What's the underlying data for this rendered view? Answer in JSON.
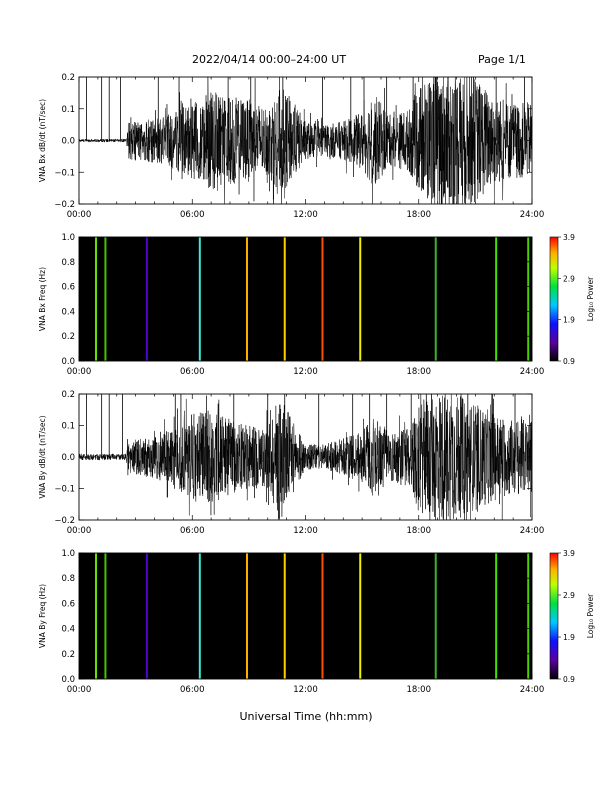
{
  "header": {
    "title": "2022/04/14  00:00–24:00 UT",
    "page": "Page 1/1"
  },
  "x_axis_title": "Universal Time (hh:mm)",
  "x_tick_labels": [
    "00:00",
    "06:00",
    "12:00",
    "18:00",
    "24:00"
  ],
  "chart_data": [
    {
      "type": "line",
      "ylabel": "VNA Bx dB/dt (nT/sec)",
      "xlim": [
        0,
        24
      ],
      "ylim": [
        -0.2,
        0.2
      ],
      "yticks": [
        "0.2",
        "0.1",
        "0.0",
        "−0.1",
        "−0.2"
      ],
      "xticks": [
        "00:00",
        "06:00",
        "12:00",
        "18:00",
        "24:00"
      ],
      "quiet_until_hour": 2.55,
      "spike_hours": [
        0.4,
        1.2,
        1.6,
        2.2,
        4.2,
        5.3,
        7.9,
        9.1,
        10.8,
        12.9,
        14.4,
        15.1,
        16.3,
        17.7,
        18.8,
        20.9,
        22.1,
        23.6
      ],
      "envelope_hours": [
        0,
        2.5,
        2.6,
        4,
        5,
        6,
        7,
        8,
        9,
        10,
        10.7,
        11.3,
        12,
        13,
        14,
        15,
        15.6,
        16.5,
        17.5,
        18.2,
        19,
        20,
        21,
        22,
        23,
        24
      ],
      "envelope_amp": [
        0.005,
        0.005,
        0.06,
        0.07,
        0.09,
        0.12,
        0.16,
        0.14,
        0.13,
        0.11,
        0.17,
        0.13,
        0.06,
        0.05,
        0.06,
        0.09,
        0.15,
        0.08,
        0.1,
        0.19,
        0.22,
        0.22,
        0.2,
        0.14,
        0.12,
        0.12
      ]
    },
    {
      "type": "heatmap",
      "ylabel": "VNA Bx Freq (Hz)",
      "xlim": [
        0,
        24
      ],
      "ylim": [
        0,
        1
      ],
      "yticks": [
        "1.0",
        "0.8",
        "0.6",
        "0.4",
        "0.2",
        "0.0"
      ],
      "xticks": [
        "00:00",
        "06:00",
        "12:00",
        "18:00",
        "24:00"
      ],
      "background": "#000000",
      "colorbar": {
        "label": "Log₁₀ Power",
        "ticks": [
          "3.9",
          "2.9",
          "1.9",
          "0.9"
        ],
        "range": [
          0.9,
          3.9
        ]
      },
      "lines": [
        {
          "hour": 0.9,
          "color": "#66e000"
        },
        {
          "hour": 1.4,
          "color": "#44c400"
        },
        {
          "hour": 3.6,
          "color": "#5000d0"
        },
        {
          "hour": 6.4,
          "color": "#40e8d8"
        },
        {
          "hour": 8.9,
          "color": "#ffb000"
        },
        {
          "hour": 10.9,
          "color": "#ffd000"
        },
        {
          "hour": 12.9,
          "color": "#ff5000"
        },
        {
          "hour": 14.9,
          "color": "#f0f000"
        },
        {
          "hour": 18.9,
          "color": "#40b030"
        },
        {
          "hour": 22.1,
          "color": "#40e000"
        },
        {
          "hour": 23.8,
          "color": "#48d000"
        }
      ]
    },
    {
      "type": "line",
      "ylabel": "VNA By dB/dt (nT/sec)",
      "xlim": [
        0,
        24
      ],
      "ylim": [
        -0.2,
        0.2
      ],
      "yticks": [
        "0.2",
        "0.1",
        "0.0",
        "−0.1",
        "−0.2"
      ],
      "xticks": [
        "00:00",
        "06:00",
        "12:00",
        "18:00",
        "24:00"
      ],
      "quiet_until_hour": 2.55,
      "spike_hours": [
        0.4,
        1.2,
        1.6,
        2.3,
        5.1,
        5.4,
        8.2,
        10.0,
        10.9,
        12.7,
        14.5,
        15.4,
        16.3,
        17.6,
        18.4,
        20.6,
        21.9,
        23.1
      ],
      "envelope_hours": [
        0,
        2.5,
        2.6,
        4,
        5,
        6,
        7,
        8,
        9,
        10,
        10.6,
        11.3,
        12,
        13,
        14,
        15,
        15.5,
        16.5,
        17.5,
        18.2,
        19,
        20,
        21,
        22,
        23,
        24
      ],
      "envelope_amp": [
        0.01,
        0.01,
        0.05,
        0.07,
        0.09,
        0.14,
        0.15,
        0.12,
        0.1,
        0.1,
        0.21,
        0.12,
        0.04,
        0.04,
        0.06,
        0.08,
        0.13,
        0.08,
        0.1,
        0.18,
        0.22,
        0.2,
        0.17,
        0.14,
        0.12,
        0.12
      ]
    },
    {
      "type": "heatmap",
      "ylabel": "VNA By Freq (Hz)",
      "xlim": [
        0,
        24
      ],
      "ylim": [
        0,
        1
      ],
      "yticks": [
        "1.0",
        "0.8",
        "0.6",
        "0.4",
        "0.2",
        "0.0"
      ],
      "xticks": [
        "00:00",
        "06:00",
        "12:00",
        "18:00",
        "24:00"
      ],
      "background": "#000000",
      "colorbar": {
        "label": "Log₁₀ Power",
        "ticks": [
          "3.9",
          "2.9",
          "1.9",
          "0.9"
        ],
        "range": [
          0.9,
          3.9
        ]
      },
      "lines": [
        {
          "hour": 0.9,
          "color": "#66e000"
        },
        {
          "hour": 1.4,
          "color": "#44c400"
        },
        {
          "hour": 3.6,
          "color": "#5000d0"
        },
        {
          "hour": 6.4,
          "color": "#40e8d8"
        },
        {
          "hour": 8.9,
          "color": "#ffb000"
        },
        {
          "hour": 10.9,
          "color": "#ffd000"
        },
        {
          "hour": 12.9,
          "color": "#ff5000"
        },
        {
          "hour": 14.9,
          "color": "#f0f000"
        },
        {
          "hour": 18.9,
          "color": "#40b030"
        },
        {
          "hour": 22.1,
          "color": "#40e000"
        },
        {
          "hour": 23.8,
          "color": "#48d000"
        }
      ]
    }
  ]
}
